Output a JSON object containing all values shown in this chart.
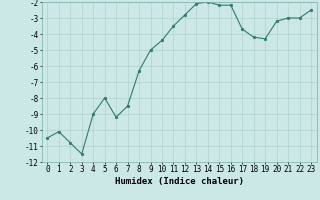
{
  "x": [
    0,
    1,
    2,
    3,
    4,
    5,
    6,
    7,
    8,
    9,
    10,
    11,
    12,
    13,
    14,
    15,
    16,
    17,
    18,
    19,
    20,
    21,
    22,
    23
  ],
  "y": [
    -10.5,
    -10.1,
    -10.8,
    -11.5,
    -9.0,
    -8.0,
    -9.2,
    -8.5,
    -6.3,
    -5.0,
    -4.4,
    -3.5,
    -2.8,
    -2.1,
    -2.0,
    -2.2,
    -2.2,
    -3.7,
    -4.2,
    -4.3,
    -3.2,
    -3.0,
    -3.0,
    -2.5
  ],
  "xlabel": "Humidex (Indice chaleur)",
  "ylim": [
    -12,
    -2
  ],
  "xlim": [
    -0.5,
    23.5
  ],
  "yticks": [
    -12,
    -11,
    -10,
    -9,
    -8,
    -7,
    -6,
    -5,
    -4,
    -3,
    -2
  ],
  "xticks": [
    0,
    1,
    2,
    3,
    4,
    5,
    6,
    7,
    8,
    9,
    10,
    11,
    12,
    13,
    14,
    15,
    16,
    17,
    18,
    19,
    20,
    21,
    22,
    23
  ],
  "line_color": "#2d7d6e",
  "marker_color": "#2d7d6e",
  "bg_color": "#cce8e6",
  "grid_color": "#b0d0ce",
  "xlabel_fontsize": 6.5,
  "tick_fontsize": 5.5,
  "linewidth": 0.8,
  "markersize": 1.8
}
